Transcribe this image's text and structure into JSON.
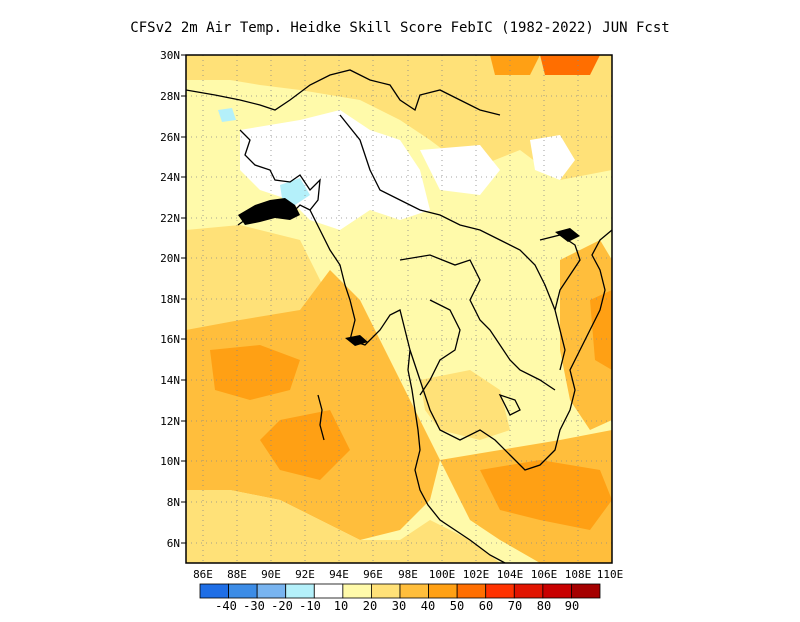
{
  "title": "CFSv2  2m Air Temp. Heidke Skill Score FebIC (1982-2022) JUN Fcst",
  "map": {
    "lat_range": [
      5,
      30
    ],
    "lon_range": [
      85,
      110
    ],
    "lat_labels": [
      "30N",
      "28N",
      "26N",
      "24N",
      "22N",
      "20N",
      "18N",
      "16N",
      "14N",
      "12N",
      "10N",
      "8N",
      "6N"
    ],
    "lon_labels": [
      "86E",
      "88E",
      "90E",
      "92E",
      "94E",
      "96E",
      "98E",
      "100E",
      "102E",
      "104E",
      "106E",
      "108E",
      "110E"
    ],
    "grid": "dotted",
    "field": "Heidke skill score, shaded"
  },
  "colorbar": {
    "labels": [
      "-40",
      "-30",
      "-20",
      "-10",
      "10",
      "20",
      "30",
      "40",
      "50",
      "60",
      "70",
      "80",
      "90"
    ],
    "colors": [
      "#1e6ee6",
      "#3c8ce6",
      "#78b4f0",
      "#b4f0fa",
      "#ffffff",
      "#fffaaa",
      "#ffe178",
      "#ffbe3c",
      "#ffa014",
      "#ff6e00",
      "#ff3200",
      "#e11400",
      "#c80000",
      "#a50000"
    ]
  }
}
